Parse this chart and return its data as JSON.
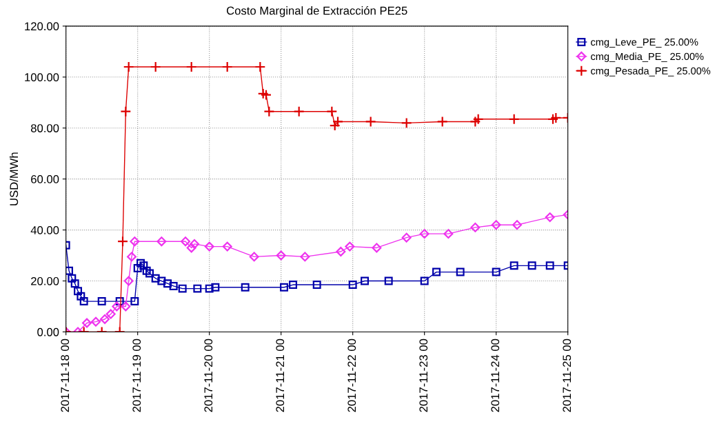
{
  "chart_data": {
    "type": "line",
    "title": "Costo Marginal de Extracción PE25",
    "ylabel": "USD/MWh",
    "xlim": [
      "2017-11-18T00:00",
      "2017-11-25T00:00"
    ],
    "xticks": [
      {
        "value": "2017-11-18T00:00",
        "label": "2017-11-18 00"
      },
      {
        "value": "2017-11-19T00:00",
        "label": "2017-11-19 00"
      },
      {
        "value": "2017-11-20T00:00",
        "label": "2017-11-20 00"
      },
      {
        "value": "2017-11-21T00:00",
        "label": "2017-11-21 00"
      },
      {
        "value": "2017-11-22T00:00",
        "label": "2017-11-22 00"
      },
      {
        "value": "2017-11-23T00:00",
        "label": "2017-11-23 00"
      },
      {
        "value": "2017-11-24T00:00",
        "label": "2017-11-24 00"
      },
      {
        "value": "2017-11-25T00:00",
        "label": "2017-11-25 00"
      }
    ],
    "ylim": [
      0,
      120
    ],
    "yticks": [
      {
        "value": 0,
        "label": "0.00"
      },
      {
        "value": 20,
        "label": "20.00"
      },
      {
        "value": 40,
        "label": "40.00"
      },
      {
        "value": 60,
        "label": "60.00"
      },
      {
        "value": 80,
        "label": "80.00"
      },
      {
        "value": 100,
        "label": "100.00"
      },
      {
        "value": 120,
        "label": "120.00"
      }
    ],
    "grid": true,
    "legend": "top right",
    "line_style": "solid",
    "series": [
      {
        "name": "cmg_Leve_PE_ 25.00%",
        "color": "#0000aa",
        "marker": "square",
        "x": [
          "2017-11-18T00:00",
          "2017-11-18T01:00",
          "2017-11-18T02:00",
          "2017-11-18T03:00",
          "2017-11-18T04:00",
          "2017-11-18T05:00",
          "2017-11-18T06:00",
          "2017-11-18T12:00",
          "2017-11-18T18:00",
          "2017-11-18T23:00",
          "2017-11-19T00:00",
          "2017-11-19T01:00",
          "2017-11-19T02:00",
          "2017-11-19T03:00",
          "2017-11-19T04:00",
          "2017-11-19T06:00",
          "2017-11-19T08:00",
          "2017-11-19T10:00",
          "2017-11-19T12:00",
          "2017-11-19T15:00",
          "2017-11-19T20:00",
          "2017-11-20T00:00",
          "2017-11-20T02:00",
          "2017-11-20T12:00",
          "2017-11-21T01:00",
          "2017-11-21T04:00",
          "2017-11-21T12:00",
          "2017-11-22T00:00",
          "2017-11-22T04:00",
          "2017-11-22T12:00",
          "2017-11-23T00:00",
          "2017-11-23T04:00",
          "2017-11-23T12:00",
          "2017-11-24T00:00",
          "2017-11-24T06:00",
          "2017-11-24T12:00",
          "2017-11-24T18:00",
          "2017-11-25T00:00"
        ],
        "values": [
          34,
          24,
          21,
          19,
          16,
          14,
          12,
          12,
          12,
          12,
          25,
          27,
          26,
          24,
          23,
          21,
          20,
          19,
          18,
          17,
          17,
          17,
          17.5,
          17.5,
          17.5,
          18.5,
          18.5,
          18.5,
          20,
          20,
          20,
          23.5,
          23.5,
          23.5,
          26,
          26,
          26,
          26
        ]
      },
      {
        "name": "cmg_Media_PE_ 25.00%",
        "color": "#ee33ee",
        "marker": "diamond",
        "x": [
          "2017-11-18T00:00",
          "2017-11-18T04:00",
          "2017-11-18T07:00",
          "2017-11-18T10:00",
          "2017-11-18T13:00",
          "2017-11-18T15:00",
          "2017-11-18T17:00",
          "2017-11-18T20:00",
          "2017-11-18T21:00",
          "2017-11-18T22:00",
          "2017-11-18T23:00",
          "2017-11-19T08:00",
          "2017-11-19T16:00",
          "2017-11-19T18:00",
          "2017-11-19T19:00",
          "2017-11-20T00:00",
          "2017-11-20T06:00",
          "2017-11-20T15:00",
          "2017-11-21T00:00",
          "2017-11-21T08:00",
          "2017-11-21T20:00",
          "2017-11-21T23:00",
          "2017-11-22T08:00",
          "2017-11-22T18:00",
          "2017-11-23T00:00",
          "2017-11-23T08:00",
          "2017-11-23T17:00",
          "2017-11-24T00:00",
          "2017-11-24T07:00",
          "2017-11-24T18:00",
          "2017-11-25T00:00"
        ],
        "values": [
          0,
          0,
          3.5,
          4,
          5,
          7,
          10,
          10,
          20,
          29.5,
          35.5,
          35.5,
          35.5,
          33,
          34.5,
          33.5,
          33.5,
          29.5,
          30,
          29.5,
          31.5,
          33.5,
          33,
          37,
          38.5,
          38.5,
          41,
          42,
          42,
          45,
          46
        ]
      },
      {
        "name": "cmg_Pesada_PE_ 25.00%",
        "color": "#dd0000",
        "marker": "cross",
        "x": [
          "2017-11-18T00:00",
          "2017-11-18T06:00",
          "2017-11-18T12:00",
          "2017-11-18T18:00",
          "2017-11-18T19:00",
          "2017-11-18T20:00",
          "2017-11-18T21:00",
          "2017-11-19T06:00",
          "2017-11-19T18:00",
          "2017-11-20T06:00",
          "2017-11-20T17:00",
          "2017-11-20T18:00",
          "2017-11-20T19:00",
          "2017-11-20T20:00",
          "2017-11-21T06:00",
          "2017-11-21T17:00",
          "2017-11-21T18:00",
          "2017-11-21T19:00",
          "2017-11-22T06:00",
          "2017-11-22T18:00",
          "2017-11-23T06:00",
          "2017-11-23T17:00",
          "2017-11-23T18:00",
          "2017-11-24T06:00",
          "2017-11-24T19:00",
          "2017-11-24T20:00",
          "2017-11-25T00:00"
        ],
        "values": [
          0,
          0,
          0,
          0,
          35.5,
          86.5,
          104,
          104,
          104,
          104,
          104,
          93.5,
          93,
          86.5,
          86.5,
          86.5,
          81,
          82.5,
          82.5,
          82,
          82.5,
          82.5,
          83.5,
          83.5,
          83.5,
          84,
          84
        ]
      }
    ]
  }
}
